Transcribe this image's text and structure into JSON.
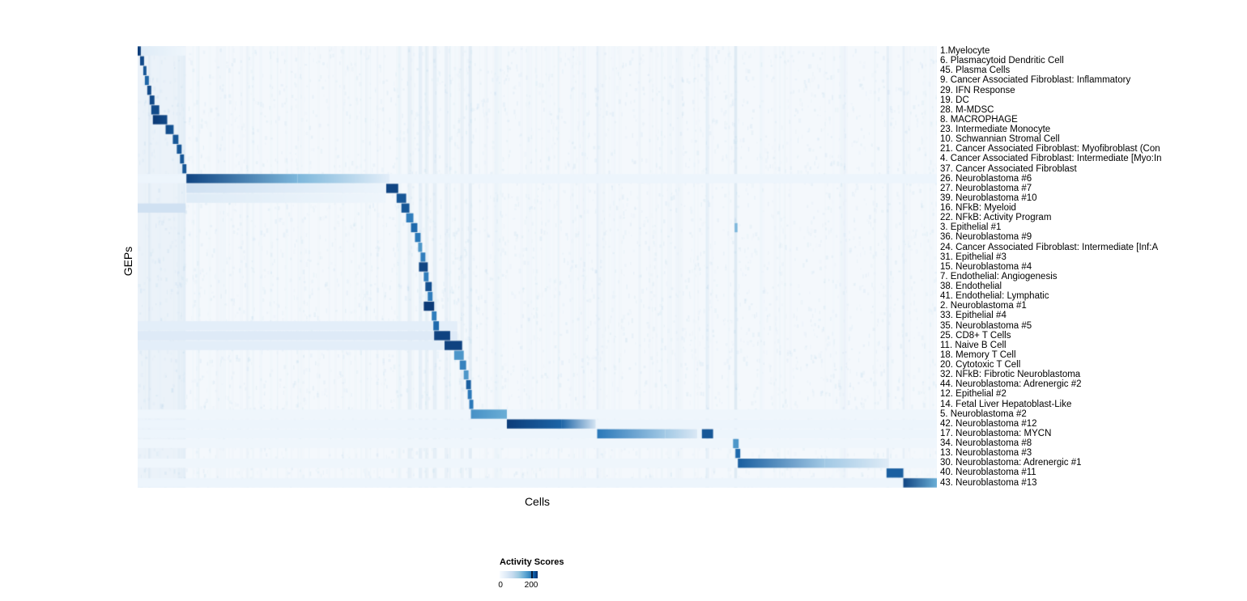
{
  "chart_data": {
    "type": "heatmap",
    "title": "",
    "xlabel": "Cells",
    "ylabel": "GEPs",
    "grid": false,
    "legend": {
      "title": "Activity Scores",
      "tick_labels": [
        "0",
        "200"
      ],
      "min": 0,
      "max": 200,
      "colormap": "Blues",
      "colormap_stops": [
        "#f7fbff",
        "#c6dbef",
        "#6baed6",
        "#2171b5",
        "#08306b"
      ],
      "position": "bottom"
    },
    "value_note": "segments are [x_start_fraction, x_end_fraction, intensity_start, intensity_end] with intensity 0..1 mapped to Blues colormap (1 ~ max activity score)",
    "rows": [
      {
        "label": "1.Myelocyte",
        "segments": [
          [
            0.0,
            0.004,
            0.95,
            0.95
          ],
          [
            0.004,
            0.06,
            0.12,
            0.04
          ]
        ]
      },
      {
        "label": "6. Plasmacytoid Dendritic Cell",
        "segments": [
          [
            0.003,
            0.008,
            0.9,
            0.9
          ]
        ]
      },
      {
        "label": "45. Plasma Cells",
        "segments": [
          [
            0.007,
            0.011,
            0.85,
            0.85
          ]
        ]
      },
      {
        "label": "9. Cancer Associated Fibroblast: Inflammatory",
        "segments": [
          [
            0.009,
            0.014,
            0.8,
            0.8
          ]
        ]
      },
      {
        "label": "29. IFN Response",
        "segments": [
          [
            0.012,
            0.017,
            0.9,
            0.9
          ]
        ]
      },
      {
        "label": "19. DC",
        "segments": [
          [
            0.015,
            0.021,
            0.9,
            0.9
          ]
        ]
      },
      {
        "label": "28. M-MDSC",
        "segments": [
          [
            0.017,
            0.027,
            0.9,
            0.9
          ]
        ]
      },
      {
        "label": "8. MACROPHAGE",
        "segments": [
          [
            0.019,
            0.037,
            0.97,
            0.9
          ]
        ]
      },
      {
        "label": "23. Intermediate Monocyte",
        "segments": [
          [
            0.035,
            0.045,
            0.9,
            0.85
          ]
        ]
      },
      {
        "label": "10. Schwannian Stromal Cell",
        "segments": [
          [
            0.044,
            0.051,
            0.85,
            0.85
          ]
        ]
      },
      {
        "label": "21. Cancer Associated Fibroblast: Myofibroblast (Con",
        "segments": [
          [
            0.049,
            0.055,
            0.85,
            0.85
          ]
        ]
      },
      {
        "label": "4. Cancer Associated Fibroblast: Intermediate [Myo:In",
        "segments": [
          [
            0.053,
            0.058,
            0.85,
            0.85
          ]
        ]
      },
      {
        "label": "37. Cancer Associated Fibroblast",
        "segments": [
          [
            0.056,
            0.061,
            0.85,
            0.85
          ]
        ]
      },
      {
        "label": "26. Neuroblastoma #6",
        "segments": [
          [
            0.0,
            1.0,
            0.05,
            0.05
          ],
          [
            0.061,
            0.2,
            0.92,
            0.45
          ],
          [
            0.2,
            0.315,
            0.45,
            0.1
          ]
        ]
      },
      {
        "label": "27. Neuroblastoma #7",
        "segments": [
          [
            0.061,
            0.31,
            0.2,
            0.05
          ],
          [
            0.311,
            0.326,
            0.92,
            0.92
          ]
        ]
      },
      {
        "label": "39. Neuroblastoma #10",
        "segments": [
          [
            0.061,
            0.31,
            0.12,
            0.04
          ],
          [
            0.324,
            0.336,
            0.85,
            0.85
          ]
        ]
      },
      {
        "label": "16. NFkB: Myeloid",
        "segments": [
          [
            0.0,
            0.06,
            0.2,
            0.2
          ],
          [
            0.33,
            0.34,
            0.85,
            0.85
          ]
        ]
      },
      {
        "label": "22. NFkB: Activity Program",
        "segments": [
          [
            0.336,
            0.345,
            0.7,
            0.7
          ]
        ]
      },
      {
        "label": "3. Epithelial #1",
        "segments": [
          [
            0.342,
            0.35,
            0.78,
            0.78
          ],
          [
            0.747,
            0.7505,
            0.45,
            0.45
          ]
        ]
      },
      {
        "label": "36. Neuroblastoma #9",
        "segments": [
          [
            0.347,
            0.354,
            0.72,
            0.72
          ]
        ]
      },
      {
        "label": "24. Cancer Associated Fibroblast: Intermediate [Inf:A",
        "segments": [
          [
            0.351,
            0.356,
            0.6,
            0.6
          ]
        ]
      },
      {
        "label": "31. Epithelial #3",
        "segments": [
          [
            0.354,
            0.36,
            0.7,
            0.7
          ]
        ]
      },
      {
        "label": "15. Neuroblastoma #4",
        "segments": [
          [
            0.352,
            0.363,
            0.92,
            0.92
          ]
        ]
      },
      {
        "label": "7. Endothelial: Angiogenesis",
        "segments": [
          [
            0.358,
            0.364,
            0.7,
            0.7
          ]
        ]
      },
      {
        "label": "38. Endothelial",
        "segments": [
          [
            0.36,
            0.368,
            0.88,
            0.88
          ]
        ]
      },
      {
        "label": "41. Endothelial: Lymphatic",
        "segments": [
          [
            0.363,
            0.369,
            0.7,
            0.7
          ]
        ]
      },
      {
        "label": "2. Neuroblastoma #1",
        "segments": [
          [
            0.358,
            0.371,
            0.96,
            0.96
          ]
        ]
      },
      {
        "label": "33. Epithelial #4",
        "segments": [
          [
            0.368,
            0.374,
            0.7,
            0.7
          ]
        ]
      },
      {
        "label": "35. Neuroblastoma #5",
        "segments": [
          [
            0.0,
            0.4,
            0.1,
            0.1
          ],
          [
            0.37,
            0.377,
            0.78,
            0.78
          ]
        ]
      },
      {
        "label": "25. CD8+ T Cells",
        "segments": [
          [
            0.0,
            0.4,
            0.13,
            0.13
          ],
          [
            0.371,
            0.391,
            0.93,
            0.93
          ]
        ]
      },
      {
        "label": "11. Naive B Cell",
        "segments": [
          [
            0.0,
            0.4,
            0.1,
            0.1
          ],
          [
            0.384,
            0.406,
            0.93,
            0.93
          ]
        ]
      },
      {
        "label": "18. Memory T Cell",
        "segments": [
          [
            0.396,
            0.408,
            0.6,
            0.6
          ]
        ]
      },
      {
        "label": "20. Cytotoxic T Cell",
        "segments": [
          [
            0.403,
            0.411,
            0.68,
            0.68
          ]
        ]
      },
      {
        "label": "32. NFkB: Fibrotic Neuroblastoma",
        "segments": [
          [
            0.408,
            0.414,
            0.6,
            0.6
          ]
        ]
      },
      {
        "label": "44. Neuroblastoma: Adrenergic #2",
        "segments": [
          [
            0.411,
            0.417,
            0.82,
            0.82
          ]
        ]
      },
      {
        "label": "12. Epithelial #2",
        "segments": [
          [
            0.413,
            0.418,
            0.72,
            0.72
          ]
        ]
      },
      {
        "label": "14. Fetal Liver Hepatoblast-Like",
        "segments": [
          [
            0.415,
            0.42,
            0.72,
            0.72
          ]
        ]
      },
      {
        "label": "5. Neuroblastoma #2",
        "segments": [
          [
            0.0,
            1.0,
            0.04,
            0.04
          ],
          [
            0.417,
            0.462,
            0.62,
            0.5
          ]
        ]
      },
      {
        "label": "42. Neuroblastoma #12",
        "segments": [
          [
            0.0,
            1.0,
            0.05,
            0.05
          ],
          [
            0.462,
            0.53,
            0.95,
            0.8
          ],
          [
            0.53,
            0.573,
            0.8,
            0.18
          ]
        ]
      },
      {
        "label": "17. Neuroblastoma: MYCN",
        "segments": [
          [
            0.0,
            1.0,
            0.05,
            0.05
          ],
          [
            0.575,
            0.66,
            0.72,
            0.35
          ],
          [
            0.66,
            0.7,
            0.35,
            0.15
          ],
          [
            0.706,
            0.72,
            0.85,
            0.85
          ]
        ]
      },
      {
        "label": "34. Neuroblastoma #8",
        "segments": [
          [
            0.0,
            1.0,
            0.04,
            0.04
          ],
          [
            0.745,
            0.752,
            0.6,
            0.6
          ]
        ]
      },
      {
        "label": "13. Neuroblastoma #3",
        "segments": [
          [
            0.748,
            0.754,
            0.78,
            0.78
          ]
        ]
      },
      {
        "label": "30. Neuroblastoma: Adrenergic #1",
        "segments": [
          [
            0.0,
            1.0,
            0.04,
            0.04
          ],
          [
            0.751,
            0.86,
            0.82,
            0.35
          ],
          [
            0.86,
            0.94,
            0.35,
            0.12
          ]
        ]
      },
      {
        "label": "40. Neuroblastoma #11",
        "segments": [
          [
            0.937,
            0.958,
            0.82,
            0.82
          ]
        ]
      },
      {
        "label": "43. Neuroblastoma #13",
        "segments": [
          [
            0.0,
            1.0,
            0.05,
            0.05
          ],
          [
            0.958,
            1.0,
            0.92,
            0.5
          ]
        ]
      }
    ],
    "vertical_bands": [
      [
        0.0,
        0.06,
        0.04
      ],
      [
        0.338,
        0.343,
        0.05
      ],
      [
        0.352,
        0.356,
        0.06
      ],
      [
        0.36,
        0.364,
        0.05
      ],
      [
        0.37,
        0.374,
        0.06
      ],
      [
        0.384,
        0.388,
        0.05
      ],
      [
        0.404,
        0.408,
        0.05
      ],
      [
        0.414,
        0.418,
        0.08
      ],
      [
        0.574,
        0.577,
        0.06
      ],
      [
        0.711,
        0.715,
        0.06
      ],
      [
        0.7465,
        0.75,
        0.1
      ],
      [
        0.937,
        0.94,
        0.05
      ],
      [
        0.957,
        0.96,
        0.06
      ]
    ]
  }
}
